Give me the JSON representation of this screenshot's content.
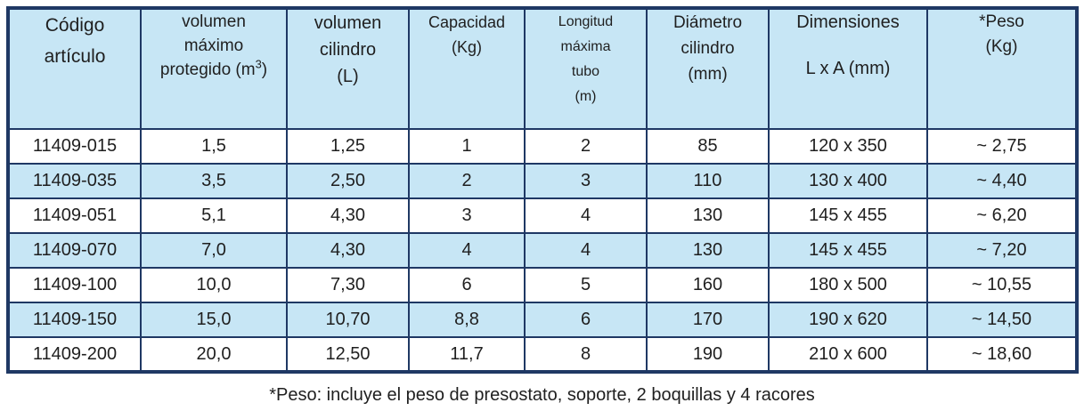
{
  "table": {
    "headers": [
      {
        "l1": "Código",
        "l2": "artículo"
      },
      {
        "l1": "volumen",
        "l2": "máximo",
        "l3pre": "protegido (m",
        "l3sup": "3",
        "l3post": ")"
      },
      {
        "l1": "volumen",
        "l2": "cilindro",
        "l3": "(L)"
      },
      {
        "l1": "Capacidad",
        "l2": "(Kg)"
      },
      {
        "l1": "Longitud",
        "l2": "máxima",
        "l3": "tubo",
        "l4": "(m)"
      },
      {
        "l1": "Diámetro",
        "l2": "cilindro",
        "l3": "(mm)"
      },
      {
        "l1": "Dimensiones",
        "l2": "L x A (mm)"
      },
      {
        "l1": "*Peso",
        "l2": "(Kg)"
      }
    ],
    "rows": [
      {
        "cells": [
          "11409-015",
          "1,5",
          "1,25",
          "1",
          "2",
          "85",
          "120 x 350",
          "~ 2,75"
        ]
      },
      {
        "cells": [
          "11409-035",
          "3,5",
          "2,50",
          "2",
          "3",
          "110",
          "130 x 400",
          "~ 4,40"
        ]
      },
      {
        "cells": [
          "11409-051",
          "5,1",
          "4,30",
          "3",
          "4",
          "130",
          "145 x 455",
          "~ 6,20"
        ]
      },
      {
        "cells": [
          "11409-070",
          "7,0",
          "4,30",
          "4",
          "4",
          "130",
          "145 x 455",
          "~ 7,20"
        ]
      },
      {
        "cells": [
          "11409-100",
          "10,0",
          "7,30",
          "6",
          "5",
          "160",
          "180 x 500",
          "~ 10,55"
        ]
      },
      {
        "cells": [
          "11409-150",
          "15,0",
          "10,70",
          "8,8",
          "6",
          "170",
          "190 x 620",
          "~ 14,50"
        ]
      },
      {
        "cells": [
          "11409-200",
          "20,0",
          "12,50",
          "11,7",
          "8",
          "190",
          "210 x 600",
          "~ 18,60"
        ]
      }
    ]
  },
  "footnote": "*Peso: incluye el peso de presostato, soporte, 2 boquillas y 4 racores",
  "colors": {
    "header_bg": "#c7e6f5",
    "stripe_bg": "#c7e6f5",
    "row_bg": "#ffffff",
    "border": "#1f3864",
    "text": "#1f1f1f"
  }
}
